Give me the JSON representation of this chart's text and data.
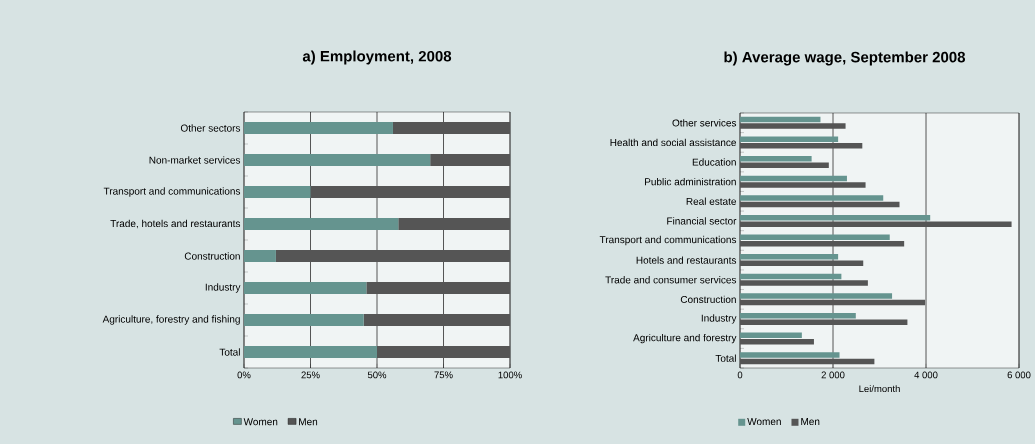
{
  "chart_data": [
    {
      "type": "bar",
      "orientation": "horizontal",
      "stacked": true,
      "title": "a) Employment, 2008",
      "categories": [
        "Other sectors",
        "Non-market services",
        "Transport and communications",
        "Trade, hotels and restaurants",
        "Construction",
        "Industry",
        "Agriculture, forestry and fishing",
        "Total"
      ],
      "series": [
        {
          "name": "Women",
          "color": "#65948f",
          "values": [
            56,
            70,
            25,
            58,
            12,
            46,
            45,
            50
          ]
        },
        {
          "name": "Men",
          "color": "#555555",
          "values": [
            44,
            30,
            75,
            42,
            88,
            54,
            55,
            50
          ]
        }
      ],
      "xlim": [
        0,
        100
      ],
      "xticks": [
        {
          "value": 0,
          "label": "0%"
        },
        {
          "value": 25,
          "label": "25%"
        },
        {
          "value": 50,
          "label": "50%"
        },
        {
          "value": 75,
          "label": "75%"
        },
        {
          "value": 100,
          "label": "100%"
        }
      ],
      "grid": "x",
      "legend": "bottom"
    },
    {
      "type": "bar",
      "orientation": "horizontal",
      "title": "b) Average wage, September 2008",
      "xlabel": "Lei/month",
      "categories": [
        "Other services",
        "Health and social assistance",
        "Education",
        "Public administration",
        "Real estate",
        "Financial sector",
        "Transport and communications",
        "Hotels and restaurants",
        "Trade and consumer services",
        "Construction",
        "Industry",
        "Agriculture and forestry",
        "Total"
      ],
      "series": [
        {
          "name": "Women",
          "color": "#65948f",
          "values": [
            1730,
            2110,
            1540,
            2300,
            3080,
            4090,
            3220,
            2110,
            2180,
            3270,
            2490,
            1330,
            2140
          ]
        },
        {
          "name": "Men",
          "color": "#555555",
          "values": [
            2270,
            2630,
            1910,
            2700,
            3430,
            5840,
            3530,
            2650,
            2750,
            3980,
            3600,
            1590,
            2890
          ]
        }
      ],
      "xlim": [
        0,
        6000
      ],
      "xticks": [
        0,
        {
          "value": 2000,
          "label": "2 000"
        },
        {
          "value": 4000,
          "label": "4 000"
        },
        {
          "value": 6000,
          "label": "6 000"
        }
      ],
      "grid": "x",
      "legend": "bottom"
    }
  ]
}
